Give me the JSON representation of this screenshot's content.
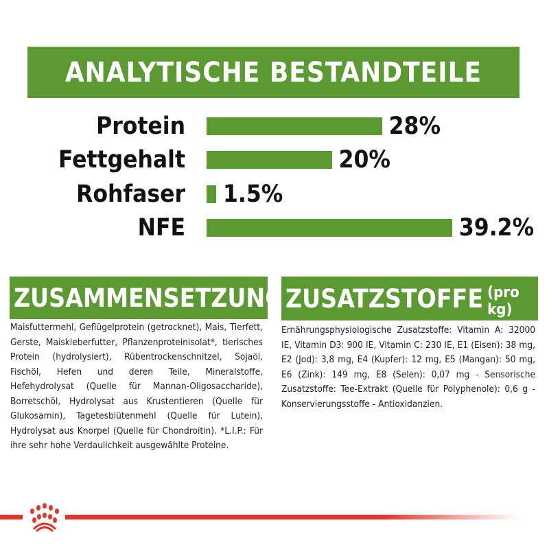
{
  "title": "ANALYTISCHE BESTANDTEILE",
  "chart_data": {
    "type": "bar",
    "orientation": "horizontal",
    "categories": [
      "Protein",
      "Fettgehalt",
      "Rohfaser",
      "NFE"
    ],
    "values": [
      28,
      20,
      1.5,
      39.2
    ],
    "value_labels": [
      "28%",
      "20%",
      "1.5%",
      "39.2%"
    ],
    "unit": "%",
    "color": "#5b9a32",
    "grid": false
  },
  "composition": {
    "heading": "ZUSAMMENSETZUNG",
    "text": "Maisfuttermehl, Geflügelprotein (getrocknet), Mais, Tierfett, Gerste, Maiskleberfutter, Pflanzenproteinisolat*, tierisches Protein (hydrolysiert), Rübentrockenschnitzel, Sojaöl, Fischöl, Hefen und deren Teile, Mineralstoffe, Hefehydrolysat (Quelle für Mannan-Oligosaccharide), Borretschöl, Hydrolysat aus Krustentieren (Quelle für Glukosamin), Tagetesblütenmehl (Quelle für Lutein), Hydrolysat aus Knorpel (Quelle für Chondroitin). *L.I.P.: Für ihre sehr hohe Verdaulichkeit ausgewählte Proteine."
  },
  "additives": {
    "heading": "ZUSATZSTOFFE",
    "unit": "(pro kg)",
    "text": "Ernährungsphysiologische Zusatzstoffe: Vitamin A: 32000 IE, Vitamin D3: 900 IE, Vitamin C: 230 IE, E1 (Eisen): 38 mg, E2 (Jod): 3,8 mg, E4 (Kupfer): 12 mg, E5 (Mangan): 50 mg, E6 (Zink): 149 mg, E8 (Selen): 0,07 mg - Sensorische Zusatzstoffe: Tee-Extrakt (Quelle für Polyphenole): 0,6 g - Konservierungsstoffe - Antioxidanzien."
  },
  "footer": {
    "logo": "royal-canin-crown-logo",
    "accent_color": "#d9382a"
  }
}
